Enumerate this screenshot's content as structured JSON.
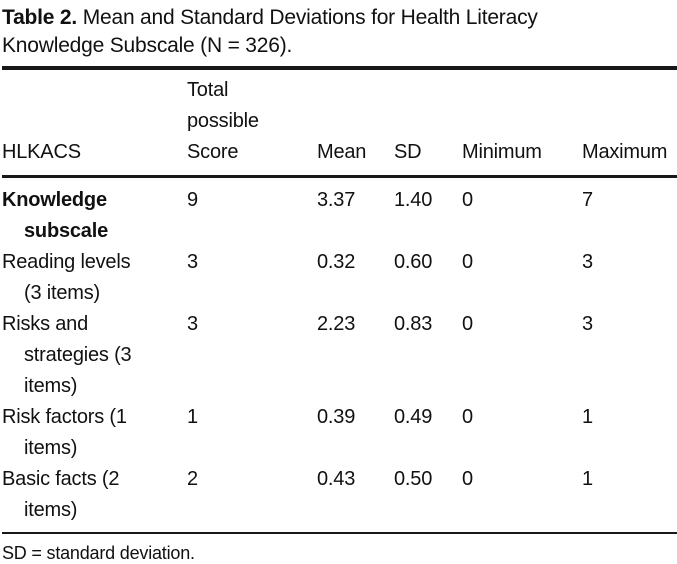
{
  "table": {
    "caption": {
      "label": "Table 2.",
      "text": "Mean and Standard Deviations for Health Literacy Knowledge Subscale (N = 326)."
    },
    "columns": [
      "HLKACS",
      "Total\npossible\nScore",
      "Mean",
      "SD",
      "Minimum",
      "Maximum"
    ],
    "rows": [
      {
        "label": "Knowledge\nsubscale",
        "total": "9",
        "mean": "3.37",
        "sd": "1.40",
        "min": "0",
        "max": "7"
      },
      {
        "label": "Reading levels\n(3 items)",
        "total": "3",
        "mean": "0.32",
        "sd": "0.60",
        "min": "0",
        "max": "3"
      },
      {
        "label": "Risks and\nstrategies (3\nitems)",
        "total": "3",
        "mean": "2.23",
        "sd": "0.83",
        "min": "0",
        "max": "3"
      },
      {
        "label": "Risk factors (1\nitems)",
        "total": "1",
        "mean": "0.39",
        "sd": "0.49",
        "min": "0",
        "max": "1"
      },
      {
        "label": "Basic facts (2\nitems)",
        "total": "2",
        "mean": "0.43",
        "sd": "0.50",
        "min": "0",
        "max": "1"
      }
    ],
    "footnote": "SD = standard deviation."
  }
}
